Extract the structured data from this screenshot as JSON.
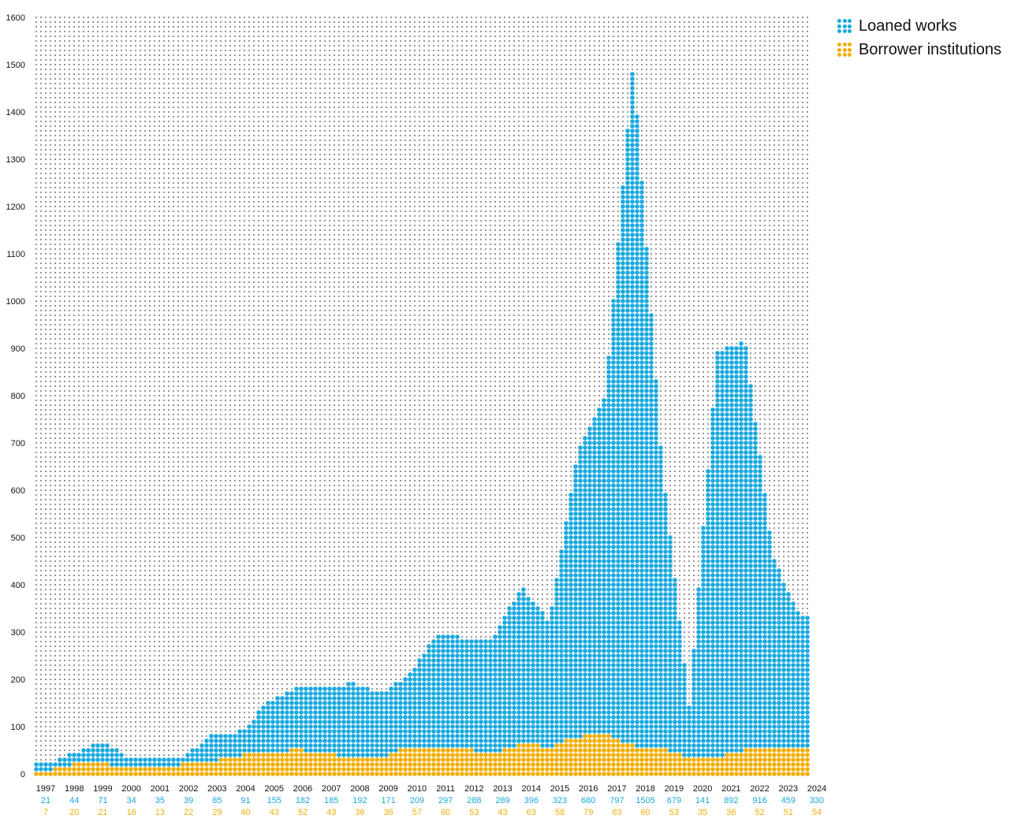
{
  "chart_data": {
    "type": "bar",
    "style": "dot-matrix stacked bars",
    "ylim": [
      0,
      1600
    ],
    "yticks": [
      "0",
      "100",
      "200",
      "300",
      "400",
      "500",
      "600",
      "700",
      "800",
      "900",
      "1000",
      "1100",
      "1200",
      "1300",
      "1400",
      "1500",
      "1600"
    ],
    "categories": [
      "1997",
      "1998",
      "1999",
      "2000",
      "2001",
      "2002",
      "2003",
      "2004",
      "2005",
      "2006",
      "2007",
      "2008",
      "2009",
      "2010",
      "2011",
      "2012",
      "2013",
      "2014",
      "2015",
      "2016",
      "2017",
      "2018",
      "2019",
      "2020",
      "2021",
      "2022",
      "2023",
      "2024"
    ],
    "series": [
      {
        "name": "Loaned works",
        "color": "#1BA9DF",
        "values": [
          21,
          44,
          71,
          34,
          35,
          39,
          85,
          91,
          155,
          182,
          185,
          192,
          171,
          209,
          297,
          288,
          289,
          396,
          323,
          680,
          797,
          1505,
          679,
          141,
          892,
          916,
          459,
          330
        ],
        "labels": [
          "21",
          "44",
          "71",
          "34",
          "35",
          "39",
          "85",
          "91",
          "155",
          "182",
          "185",
          "192",
          "171",
          "209",
          "297",
          "288",
          "289",
          "396",
          "323",
          "680",
          "797",
          "1505",
          "679",
          "141",
          "892",
          "916",
          "459",
          "330"
        ]
      },
      {
        "name": "Borrower institutions",
        "color": "#F2AE0A",
        "values": [
          7,
          20,
          21,
          16,
          13,
          22,
          29,
          40,
          43,
          52,
          43,
          36,
          36,
          57,
          60,
          53,
          43,
          63,
          58,
          79,
          83,
          60,
          53,
          35,
          36,
          52,
          51,
          54
        ],
        "labels": [
          "7",
          "20",
          "21",
          "16",
          "13",
          "22",
          "29",
          "40",
          "43",
          "52",
          "43",
          "36",
          "36",
          "57",
          "60",
          "53",
          "43",
          "63",
          "58",
          "79",
          "83",
          "60",
          "53",
          "35",
          "36",
          "52",
          "51",
          "54"
        ]
      }
    ],
    "legend_position": "top-right",
    "background_dots_color": "#1a1a1a"
  },
  "legend": [
    {
      "label": "Loaned works",
      "color": "#1BA9DF"
    },
    {
      "label": "Borrower institutions",
      "color": "#F2AE0A"
    }
  ]
}
